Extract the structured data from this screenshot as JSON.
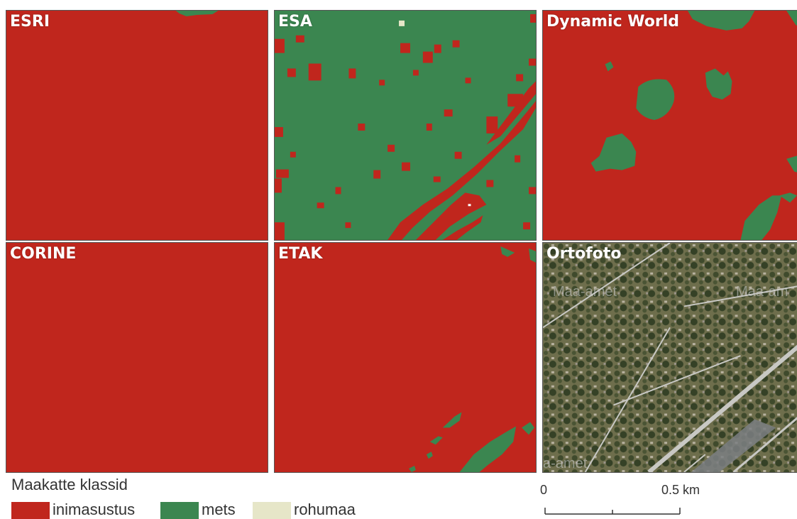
{
  "panels": [
    {
      "id": "esri",
      "title": "ESRI"
    },
    {
      "id": "esa",
      "title": "ESA"
    },
    {
      "id": "dw",
      "title": "Dynamic World"
    },
    {
      "id": "corine",
      "title": "CORINE"
    },
    {
      "id": "etak",
      "title": "ETAK"
    },
    {
      "id": "orto",
      "title": "Ortofoto"
    }
  ],
  "orthophoto_watermarks": [
    "Maa-amet",
    "Maa-am",
    "a-amet"
  ],
  "legend": {
    "title": "Maakatte klassid",
    "items": [
      {
        "label": "inimasustus",
        "color": "#c0261d"
      },
      {
        "label": "mets",
        "color": "#3b8650"
      },
      {
        "label": "rohumaa",
        "color": "#e6e6c8"
      }
    ]
  },
  "scalebar": {
    "start": "0",
    "end": "0.5 km"
  },
  "colors": {
    "inimasustus": "#c0261d",
    "mets": "#3b8650",
    "rohumaa": "#e6e6c8"
  }
}
